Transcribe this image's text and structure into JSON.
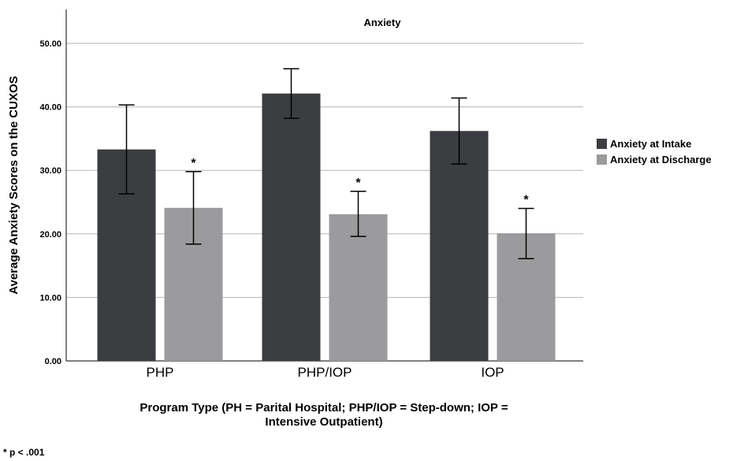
{
  "chart_data": {
    "type": "bar",
    "title": "Anxiety",
    "ylabel": "Average Anxiety Scores on the CUXOS",
    "xlabel_line1": "Program Type (PH = Parital Hospital; PHP/IOP = Step-down; IOP =",
    "xlabel_line2": "Intensive Outpatient)",
    "categories": [
      "PHP",
      "PHP/IOP",
      "IOP"
    ],
    "ylim": [
      0,
      55
    ],
    "yticks": [
      0,
      10,
      20,
      30,
      40,
      50
    ],
    "ytick_labels": [
      "0.00",
      "10.00",
      "20.00",
      "30.00",
      "40.00",
      "50.00"
    ],
    "grid": true,
    "legend_position": "right",
    "series": [
      {
        "name": "Anxiety at Intake",
        "color": "#3b3d40",
        "values": [
          33.3,
          42.1,
          36.2
        ],
        "error_low": [
          26.3,
          38.2,
          31.0
        ],
        "error_high": [
          40.3,
          46.0,
          41.4
        ]
      },
      {
        "name": "Anxiety at Discharge",
        "color": "#9b9a9c",
        "values": [
          24.1,
          23.1,
          20.1
        ],
        "error_low": [
          18.4,
          19.6,
          16.1
        ],
        "error_high": [
          29.8,
          26.7,
          24.0
        ]
      }
    ],
    "significance_marker": "*",
    "footnote": "* p < .001"
  }
}
